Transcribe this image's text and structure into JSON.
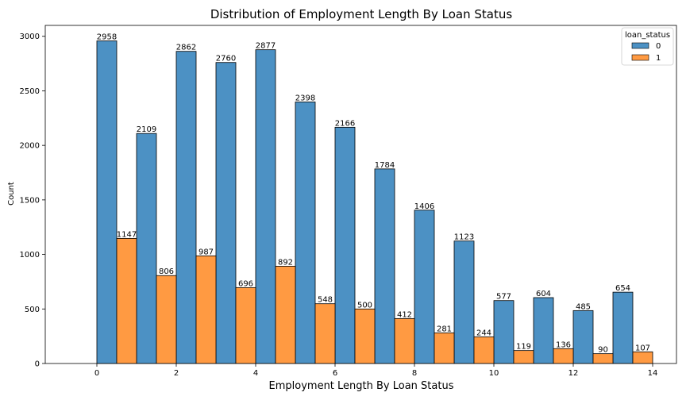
{
  "chart_data": {
    "type": "bar",
    "title": "Distribution of Employment Length By Loan Status",
    "xlabel": "Employment Length By Loan Status",
    "ylabel": "Count",
    "xlim": [
      -1.3,
      14.6
    ],
    "ylim": [
      0,
      3100
    ],
    "xticks": [
      0,
      2,
      4,
      6,
      8,
      10,
      12,
      14
    ],
    "yticks": [
      0,
      500,
      1000,
      1500,
      2000,
      2500,
      3000
    ],
    "bin_width": 0.5,
    "grid": false,
    "legend": {
      "title": "loan_status",
      "position": "top-right"
    },
    "series": [
      {
        "name": "0",
        "color": "#4c91c4",
        "x_start": [
          0,
          1,
          2,
          3,
          4,
          5,
          6,
          7,
          8,
          9,
          10,
          11,
          12,
          13
        ],
        "values": [
          2958,
          2109,
          2862,
          2760,
          2877,
          2398,
          2166,
          1784,
          1406,
          1123,
          577,
          604,
          485,
          654
        ]
      },
      {
        "name": "1",
        "color": "#ff9a42",
        "x_start": [
          0.5,
          1.5,
          2.5,
          3.5,
          4.5,
          5.5,
          6.5,
          7.5,
          8.5,
          9.5,
          10.5,
          11.5,
          12.5,
          13.5
        ],
        "values": [
          1147,
          806,
          987,
          696,
          892,
          548,
          500,
          412,
          281,
          244,
          119,
          136,
          90,
          107
        ]
      }
    ]
  }
}
